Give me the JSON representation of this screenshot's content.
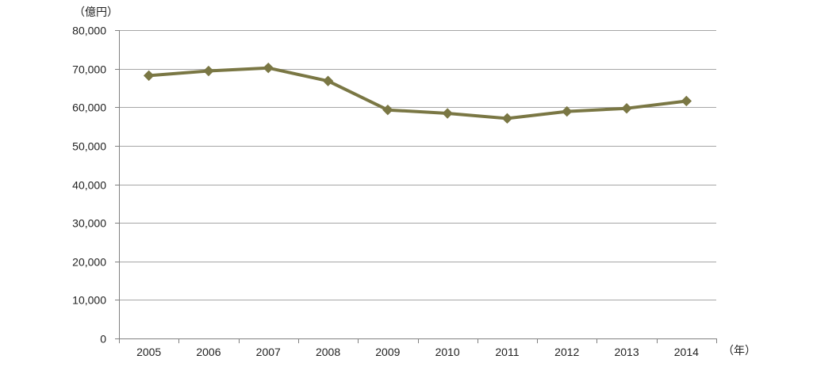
{
  "chart_data": {
    "type": "line",
    "title": "",
    "xlabel": "（年）",
    "ylabel": "（億円）",
    "categories": [
      "2005",
      "2006",
      "2007",
      "2008",
      "2009",
      "2010",
      "2011",
      "2012",
      "2013",
      "2014"
    ],
    "series": [
      {
        "values": [
          68200,
          69400,
          70200,
          66800,
          59300,
          58400,
          57100,
          58900,
          59700,
          61600
        ]
      }
    ],
    "ylim": [
      0,
      80000
    ],
    "yticks": [
      0,
      10000,
      20000,
      30000,
      40000,
      50000,
      60000,
      70000,
      80000
    ],
    "ytick_labels": [
      "0",
      "10,000",
      "20,000",
      "30,000",
      "40,000",
      "50,000",
      "60,000",
      "70,000",
      "80,000"
    ],
    "grid": true,
    "legend": "none",
    "colors": {
      "series": "#7a7744",
      "grid": "#a6a6a6",
      "axis": "#808080"
    }
  }
}
